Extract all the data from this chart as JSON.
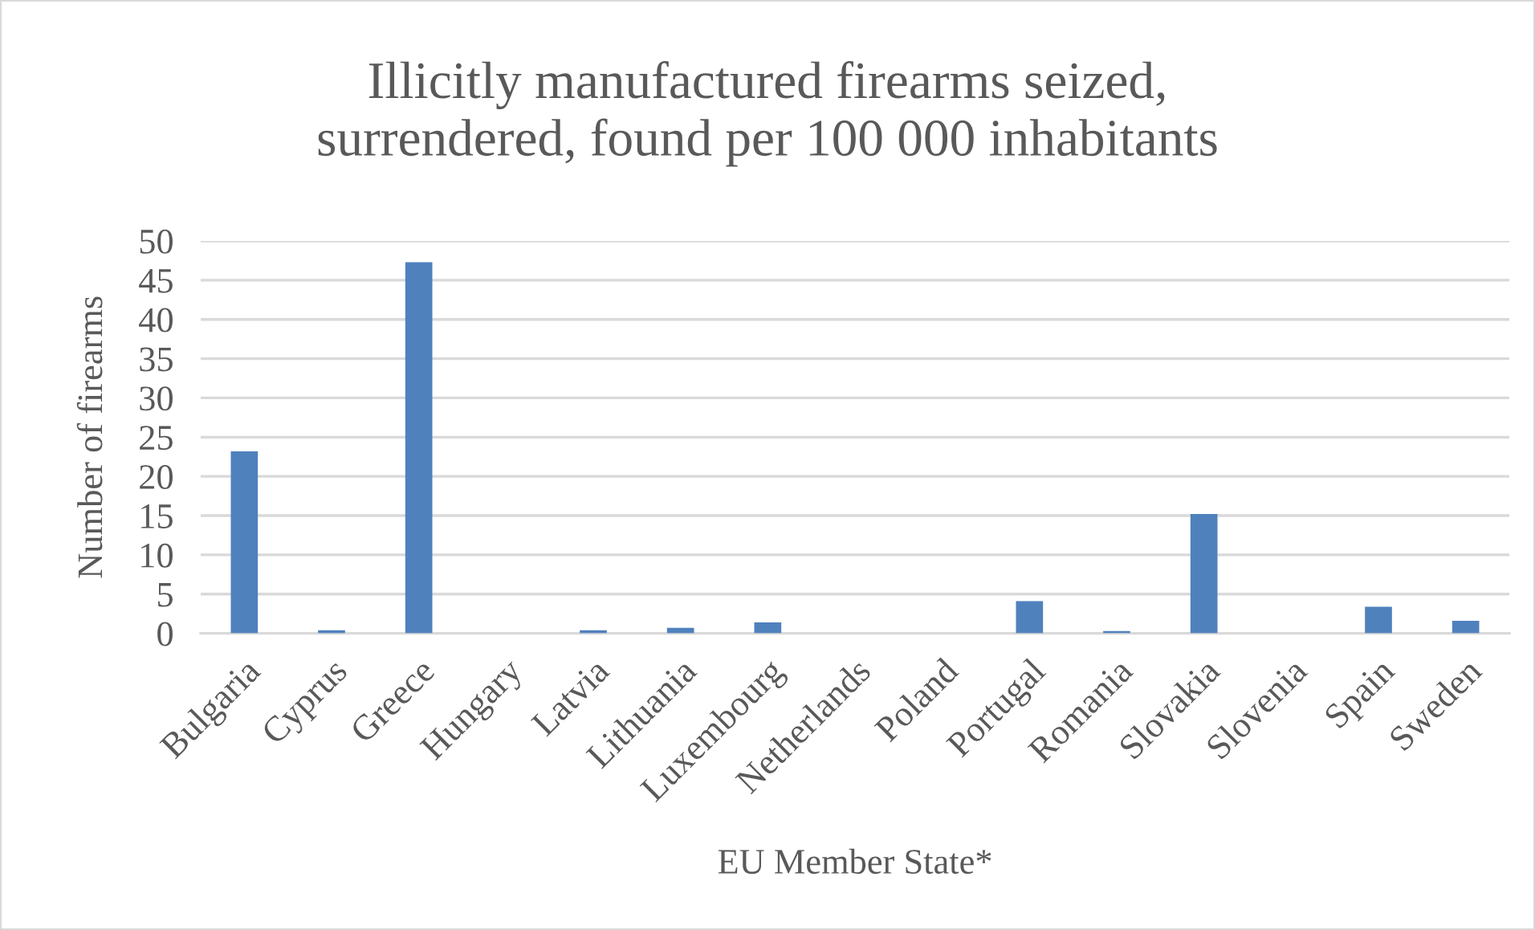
{
  "chart_data": {
    "type": "bar",
    "title": "Illicitly manufactured firearms seized,\nsurrendered, found per 100 000 inhabitants",
    "xlabel": "EU Member State*",
    "ylabel": "Number of firearms",
    "categories": [
      "Bulgaria",
      "Cyprus",
      "Greece",
      "Hungary",
      "Latvia",
      "Lithuania",
      "Luxembourg",
      "Netherlands",
      "Poland",
      "Portugal",
      "Romania",
      "Slovakia",
      "Slovenia",
      "Spain",
      "Sweden"
    ],
    "values": [
      23.2,
      0.4,
      47.3,
      0,
      0.4,
      0.7,
      1.4,
      0,
      0,
      4.1,
      0.3,
      15.2,
      0,
      3.4,
      1.6
    ],
    "color": "#4f81bd",
    "ylim": [
      0,
      50
    ],
    "yticks": [
      0,
      5,
      10,
      15,
      20,
      25,
      30,
      35,
      40,
      45,
      50
    ],
    "grid": "y"
  }
}
